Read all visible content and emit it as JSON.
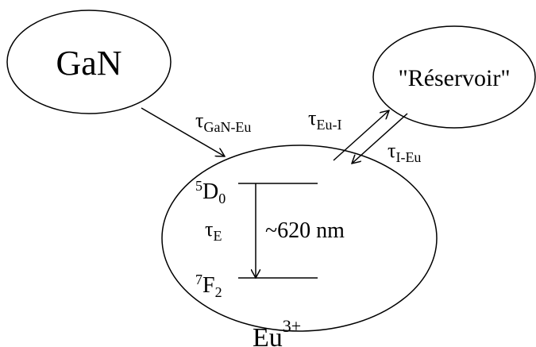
{
  "nodes": [
    {
      "label": "GaN"
    },
    {
      "label": "\"Réservoir\""
    },
    {
      "label": "Eu",
      "sup": "3+"
    }
  ],
  "transitions": [
    {
      "symbol": "τ",
      "sub": "GaN-Eu"
    },
    {
      "symbol": "τ",
      "sub": "Eu-I"
    },
    {
      "symbol": "τ",
      "sub": "I-Eu"
    }
  ],
  "levels": [
    {
      "sup": "5",
      "symbol": "D",
      "sub": "0"
    },
    {
      "sup": "7",
      "symbol": "F",
      "sub": "2"
    }
  ],
  "emission": {
    "symbol": "τ",
    "sub": "E",
    "wavelength": "~620 nm"
  }
}
